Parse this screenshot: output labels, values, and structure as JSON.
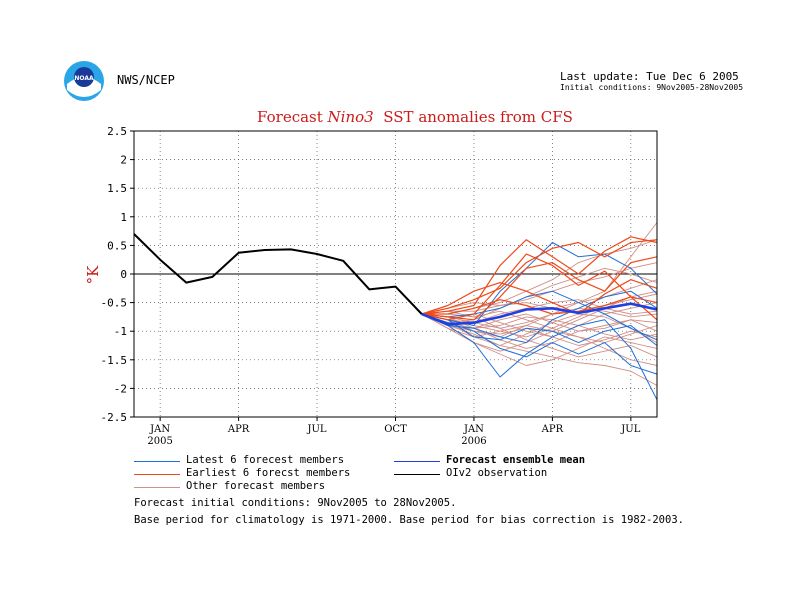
{
  "header": {
    "agency": "NWS/NCEP",
    "logo_text": "NOAA",
    "last_update": "Last update: Tue Dec 6 2005",
    "initial_conditions": "Initial conditions: 9Nov2005-28Nov2005"
  },
  "chart_data": {
    "type": "line",
    "title_parts": [
      "Forecast ",
      "Nino3",
      "  SST anomalies from CFS"
    ],
    "ylabel": "°K",
    "ylim": [
      -2.5,
      2.5
    ],
    "yticks": [
      "2.5",
      "2",
      "1.5",
      "1",
      "0.5",
      "0",
      "-0.5",
      "-1",
      "-1.5",
      "-2",
      "-2.5"
    ],
    "xlim": [
      0,
      20
    ],
    "xticks": [
      {
        "x": 1,
        "label": "JAN",
        "sub": "2005"
      },
      {
        "x": 4,
        "label": "APR",
        "sub": ""
      },
      {
        "x": 7,
        "label": "JUL",
        "sub": ""
      },
      {
        "x": 10,
        "label": "OCT",
        "sub": ""
      },
      {
        "x": 13,
        "label": "JAN",
        "sub": "2006"
      },
      {
        "x": 16,
        "label": "APR",
        "sub": ""
      },
      {
        "x": 19,
        "label": "JUL",
        "sub": ""
      }
    ],
    "grid": true,
    "observation": {
      "name": "OIv2 observation",
      "color": "#000000",
      "x": [
        0,
        1,
        2,
        3,
        4,
        5,
        6,
        7,
        8,
        9,
        10,
        11
      ],
      "y": [
        0.7,
        0.25,
        -0.15,
        -0.05,
        0.37,
        0.42,
        0.43,
        0.35,
        0.23,
        -0.27,
        -0.22,
        -0.7
      ]
    },
    "forecast_x": [
      11,
      12,
      13,
      14,
      15,
      16,
      17,
      18,
      19,
      20
    ],
    "ensemble_mean": {
      "name": "Forecast ensemble mean",
      "color": "#1f3fe0",
      "y": [
        -0.7,
        -0.88,
        -0.85,
        -0.75,
        -0.62,
        -0.6,
        -0.68,
        -0.6,
        -0.52,
        -0.62
      ]
    },
    "latest_members": {
      "name": "Latest 6 forecast members",
      "color": "#1f6fd8",
      "series": [
        [
          -0.7,
          -0.9,
          -1.2,
          -1.8,
          -1.4,
          -1.1,
          -0.9,
          -0.8,
          -1.3,
          -2.2
        ],
        [
          -0.7,
          -0.8,
          -0.9,
          -0.3,
          0.1,
          0.55,
          0.3,
          0.35,
          0.1,
          -0.35
        ],
        [
          -0.7,
          -0.85,
          -1.0,
          -1.3,
          -1.45,
          -1.2,
          -1.4,
          -1.2,
          -1.6,
          -1.75
        ],
        [
          -0.7,
          -0.75,
          -0.7,
          -0.6,
          -0.4,
          -0.3,
          -0.5,
          -0.7,
          -0.95,
          -1.15
        ],
        [
          -0.7,
          -0.9,
          -0.95,
          -1.1,
          -1.2,
          -0.8,
          -0.6,
          -0.4,
          -0.3,
          -0.6
        ],
        [
          -0.7,
          -0.8,
          -1.1,
          -1.15,
          -0.95,
          -1.0,
          -1.2,
          -1.0,
          -0.9,
          -1.25
        ]
      ]
    },
    "earliest_members": {
      "name": "Earliest 6 forecast members",
      "color": "#ee4a1a",
      "series": [
        [
          -0.7,
          -0.65,
          -0.55,
          0.15,
          0.6,
          0.3,
          0.0,
          0.4,
          0.65,
          0.55
        ],
        [
          -0.7,
          -0.6,
          -0.45,
          -0.25,
          0.2,
          0.45,
          0.55,
          0.3,
          0.55,
          0.6
        ],
        [
          -0.7,
          -0.75,
          -0.8,
          -0.4,
          0.1,
          0.2,
          -0.1,
          -0.3,
          0.2,
          0.3
        ],
        [
          -0.7,
          -0.55,
          -0.3,
          -0.15,
          -0.3,
          -0.5,
          -0.7,
          -0.35,
          -0.1,
          -0.25
        ],
        [
          -0.7,
          -0.7,
          -0.6,
          -0.45,
          -0.55,
          -0.7,
          -0.65,
          -0.55,
          -0.4,
          -0.8
        ],
        [
          -0.7,
          -0.8,
          -0.7,
          -0.2,
          0.35,
          0.15,
          -0.2,
          0.05,
          -0.4,
          -0.5
        ]
      ]
    },
    "other_members": {
      "name": "Other forecast members",
      "color": "#d09088",
      "series": [
        [
          -0.7,
          -0.8,
          -1.0,
          -1.1,
          -0.9,
          -0.7,
          -0.5,
          -0.3,
          0.3,
          0.9
        ],
        [
          -0.7,
          -0.9,
          -1.2,
          -1.4,
          -1.6,
          -1.5,
          -1.3,
          -1.1,
          -1.2,
          -1.3
        ],
        [
          -0.7,
          -0.7,
          -0.6,
          -0.5,
          -0.3,
          -0.1,
          0.2,
          0.35,
          0.45,
          0.6
        ],
        [
          -0.7,
          -0.95,
          -1.1,
          -1.0,
          -0.9,
          -1.0,
          -1.1,
          -1.3,
          -1.5,
          -1.6
        ],
        [
          -0.7,
          -0.75,
          -0.85,
          -0.7,
          -0.6,
          -0.5,
          -0.45,
          -0.6,
          -0.7,
          -0.65
        ],
        [
          -0.7,
          -0.85,
          -0.95,
          -1.15,
          -1.3,
          -1.2,
          -1.0,
          -0.9,
          -0.8,
          -1.0
        ],
        [
          -0.7,
          -0.6,
          -0.5,
          -0.55,
          -0.45,
          -0.3,
          -0.15,
          -0.05,
          0.1,
          0.2
        ],
        [
          -0.7,
          -0.9,
          -1.05,
          -1.25,
          -1.05,
          -0.85,
          -0.7,
          -0.75,
          -0.95,
          -1.2
        ],
        [
          -0.7,
          -0.8,
          -0.7,
          -0.85,
          -1.0,
          -1.1,
          -0.9,
          -0.7,
          -0.6,
          -0.5
        ],
        [
          -0.7,
          -0.65,
          -0.75,
          -0.95,
          -1.15,
          -1.3,
          -1.45,
          -1.35,
          -1.25,
          -1.45
        ],
        [
          -0.7,
          -0.85,
          -0.8,
          -0.6,
          -0.4,
          -0.2,
          -0.05,
          0.1,
          0.0,
          -0.15
        ],
        [
          -0.7,
          -0.95,
          -1.2,
          -1.35,
          -1.2,
          -1.0,
          -0.8,
          -0.6,
          -0.4,
          -0.3
        ],
        [
          -0.7,
          -0.75,
          -0.95,
          -0.9,
          -0.75,
          -0.8,
          -0.9,
          -1.05,
          -1.15,
          -1.05
        ],
        [
          -0.7,
          -0.8,
          -0.9,
          -1.0,
          -1.1,
          -0.95,
          -0.75,
          -0.55,
          -0.45,
          -0.35
        ],
        [
          -0.7,
          -0.9,
          -0.95,
          -0.8,
          -0.7,
          -0.85,
          -1.0,
          -0.95,
          -0.8,
          -0.85
        ],
        [
          -0.7,
          -0.7,
          -0.75,
          -0.65,
          -0.8,
          -0.95,
          -1.1,
          -1.2,
          -1.05,
          -0.9
        ],
        [
          -0.7,
          -0.85,
          -1.1,
          -1.25,
          -1.35,
          -1.45,
          -1.55,
          -1.6,
          -1.7,
          -1.95
        ],
        [
          -0.7,
          -0.65,
          -0.65,
          -0.55,
          -0.5,
          -0.6,
          -0.5,
          -0.4,
          -0.25,
          -0.1
        ],
        [
          -0.7,
          -0.8,
          -0.85,
          -0.95,
          -0.85,
          -0.7,
          -0.6,
          -0.65,
          -0.75,
          -0.7
        ],
        [
          -0.7,
          -0.9,
          -1.0,
          -1.05,
          -0.95,
          -1.1,
          -1.25,
          -1.15,
          -1.0,
          -1.1
        ]
      ]
    }
  },
  "legend": {
    "items": [
      {
        "label": "Latest 6 forecest members",
        "color": "#1f6fd8",
        "bold": false
      },
      {
        "label": "Earliest 6 forecst members",
        "color": "#ee4a1a",
        "bold": false
      },
      {
        "label": "Other forecast members",
        "color": "#d09088",
        "bold": false
      },
      {
        "label": "Forecast ensemble mean",
        "color": "#1f3fe0",
        "bold": true
      },
      {
        "label": "OIv2 observation",
        "color": "#000000",
        "bold": false
      }
    ]
  },
  "footer": {
    "line1": "Forecast initial conditions: 9Nov2005 to 28Nov2005.",
    "line2": "Base period for climatology is 1971-2000. Base period for bias correction is 1982-2003."
  }
}
